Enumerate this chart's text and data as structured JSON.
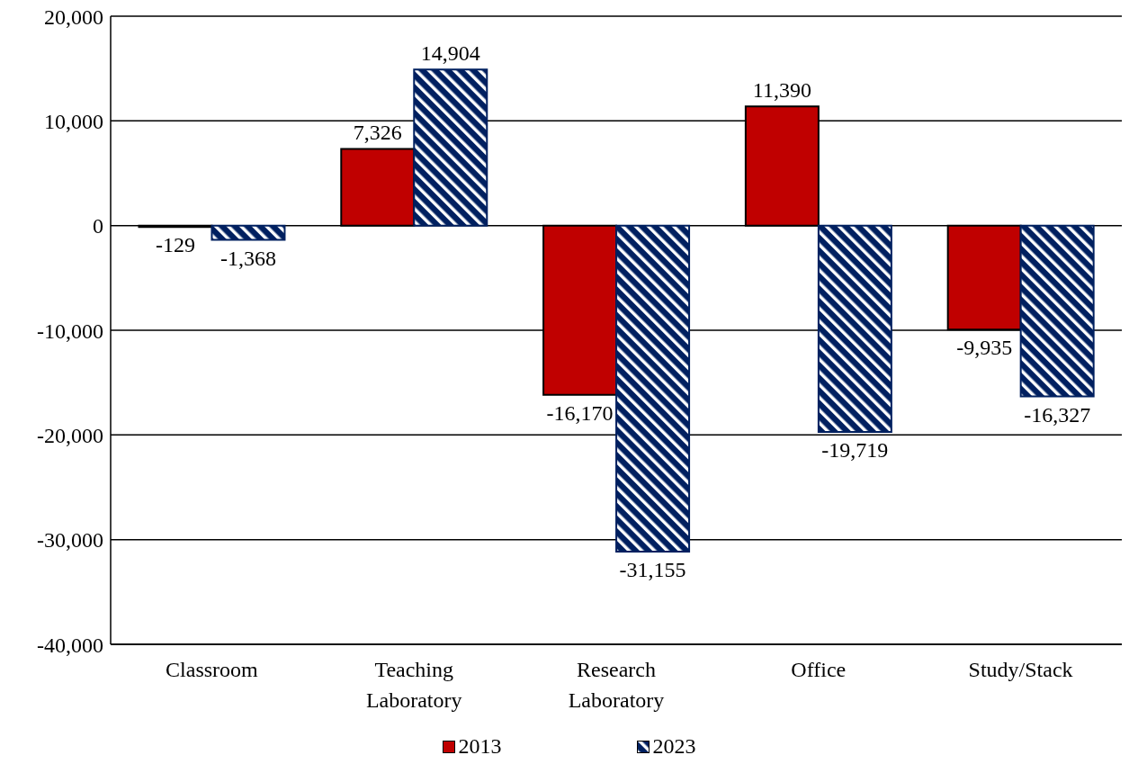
{
  "chart_data": {
    "type": "bar",
    "categories": [
      "Classroom",
      "Teaching Laboratory",
      "Research Laboratory",
      "Office",
      "Study/Stack"
    ],
    "series": [
      {
        "name": "2013",
        "color": "#c00000",
        "values": [
          -129,
          7326,
          -16170,
          11390,
          -9935
        ],
        "value_labels": [
          "-129",
          "7,326",
          "-16,170",
          "11,390",
          "-9,935"
        ]
      },
      {
        "name": "2023",
        "color": "#002060",
        "values": [
          -1368,
          14904,
          -31155,
          -19719,
          -16327
        ],
        "value_labels": [
          "-1,368",
          "14,904",
          "-31,155",
          "-19,719",
          "-16,327"
        ]
      }
    ],
    "ylim": [
      -40000,
      20000
    ],
    "yticks": [
      {
        "value": -40000,
        "label": "-40,000"
      },
      {
        "value": -30000,
        "label": "-30,000"
      },
      {
        "value": -20000,
        "label": "-20,000"
      },
      {
        "value": -10000,
        "label": "-10,000"
      },
      {
        "value": 0,
        "label": "0"
      },
      {
        "value": 10000,
        "label": "10,000"
      },
      {
        "value": 20000,
        "label": "20,000"
      }
    ],
    "grid": "y",
    "legend": "bottom"
  }
}
